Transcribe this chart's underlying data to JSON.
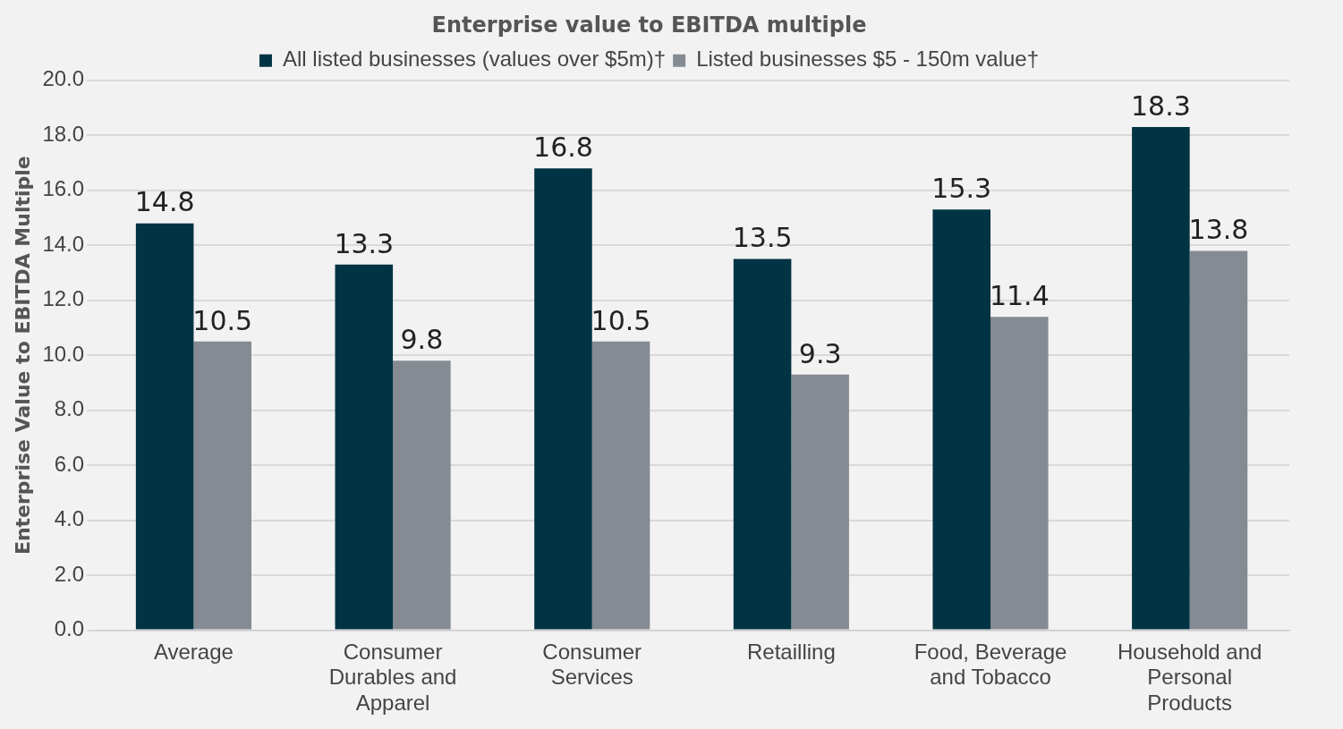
{
  "chart_data": {
    "type": "bar",
    "title": "Enterprise value to EBITDA multiple",
    "ylabel": "Enterprise Value to EBITDA Multiple",
    "categories": [
      "Average",
      "Consumer Durables and Apparel",
      "Consumer Services",
      "Retailling",
      "Food, Beverage and Tobacco",
      "Household and Personal Products"
    ],
    "series": [
      {
        "name": "All listed businesses (values over $5m)†",
        "color": "#003343",
        "values": [
          14.8,
          13.3,
          16.8,
          13.5,
          15.3,
          18.3
        ]
      },
      {
        "name": "Listed businesses $5 - 150m value†",
        "color": "#848b92",
        "values": [
          10.5,
          9.8,
          10.5,
          9.3,
          11.4,
          13.8
        ]
      }
    ],
    "ylim": [
      0,
      20
    ],
    "yticks": [
      {
        "value": 0,
        "label": "0.0"
      },
      {
        "value": 2,
        "label": "2.0"
      },
      {
        "value": 4,
        "label": "4.0"
      },
      {
        "value": 6,
        "label": "6.0"
      },
      {
        "value": 8,
        "label": "8.0"
      },
      {
        "value": 10,
        "label": "10.0"
      },
      {
        "value": 12,
        "label": "12.0"
      },
      {
        "value": 14,
        "label": "14.0"
      },
      {
        "value": 16,
        "label": "16.0"
      },
      {
        "value": 18,
        "label": "18.0"
      },
      {
        "value": 20,
        "label": "20.0"
      }
    ],
    "grid": "y",
    "legend": "top",
    "data_labels": true
  }
}
